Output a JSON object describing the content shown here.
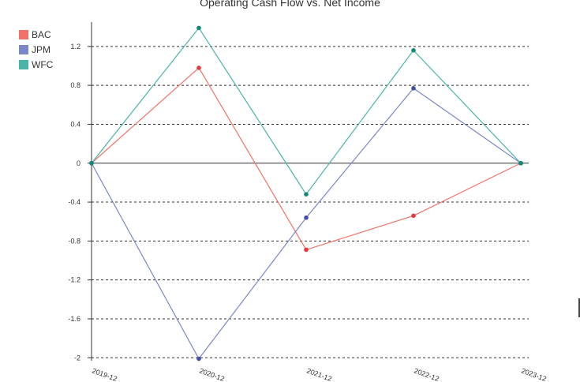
{
  "chart_data": {
    "type": "line",
    "title": "Operating Cash Flow vs. Net Income",
    "xlabel": "",
    "ylabel": "",
    "categories": [
      "2019-12",
      "2020-12",
      "2021-12",
      "2022-12",
      "2023-12"
    ],
    "category_labels": [
      "2019-12",
      "2020-12",
      "2021-12",
      "2022-12",
      "2023-12"
    ],
    "yticks": [
      -2,
      -1.6,
      -1.2,
      -0.8,
      -0.4,
      0,
      0.4,
      0.8,
      1.2
    ],
    "ylim": [
      -2.03,
      1.45
    ],
    "grid": true,
    "legend_position": "top-left",
    "series": [
      {
        "name": "BAC",
        "color": "#f07167",
        "point_color": "#e5393b",
        "values": [
          0,
          0.98,
          -0.89,
          -0.54,
          0
        ]
      },
      {
        "name": "JPM",
        "color": "#7b86c5",
        "point_color": "#3f4fa8",
        "values": [
          0,
          -2.01,
          -0.56,
          0.77,
          0
        ]
      },
      {
        "name": "WFC",
        "color": "#4ab5a6",
        "point_color": "#0f8a76",
        "values": [
          0,
          1.39,
          -0.32,
          1.16,
          0
        ]
      }
    ]
  }
}
